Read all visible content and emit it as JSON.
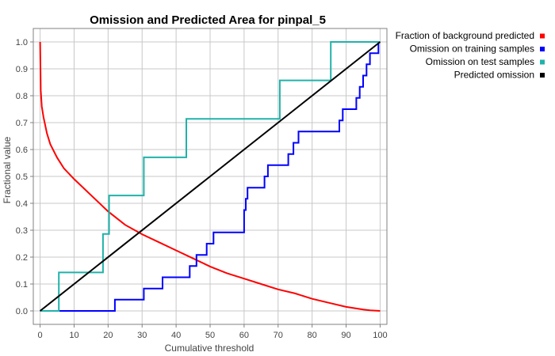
{
  "chart_data": {
    "type": "line",
    "title": "Omission and Predicted Area for pinpal_5",
    "xlabel": "Cumulative threshold",
    "ylabel": "Fractional value",
    "xlim": [
      -2,
      102
    ],
    "ylim": [
      -0.05,
      1.05
    ],
    "xticks": [
      "0",
      "10",
      "20",
      "30",
      "40",
      "50",
      "60",
      "70",
      "80",
      "90",
      "100"
    ],
    "yticks": [
      "0.0",
      "0.1",
      "0.2",
      "0.3",
      "0.4",
      "0.5",
      "0.6",
      "0.7",
      "0.8",
      "0.9",
      "1.0"
    ],
    "grid": true,
    "legend_position": "top-right, outside plot",
    "series": [
      {
        "name": "Fraction of background predicted",
        "color": "#ff0000",
        "style": "line",
        "points": [
          [
            0,
            1.0
          ],
          [
            0.2,
            0.82
          ],
          [
            0.5,
            0.76
          ],
          [
            1,
            0.72
          ],
          [
            2,
            0.66
          ],
          [
            3,
            0.62
          ],
          [
            5,
            0.57
          ],
          [
            7,
            0.53
          ],
          [
            10,
            0.49
          ],
          [
            15,
            0.43
          ],
          [
            20,
            0.37
          ],
          [
            25,
            0.32
          ],
          [
            30,
            0.285
          ],
          [
            35,
            0.255
          ],
          [
            40,
            0.225
          ],
          [
            45,
            0.195
          ],
          [
            50,
            0.165
          ],
          [
            55,
            0.14
          ],
          [
            60,
            0.12
          ],
          [
            65,
            0.1
          ],
          [
            70,
            0.08
          ],
          [
            75,
            0.065
          ],
          [
            80,
            0.045
          ],
          [
            85,
            0.03
          ],
          [
            90,
            0.015
          ],
          [
            95,
            0.005
          ],
          [
            97,
            0.002
          ],
          [
            100,
            0.0
          ]
        ]
      },
      {
        "name": "Omission on training samples",
        "color": "#0000ff",
        "style": "step",
        "points": [
          [
            0,
            0.0
          ],
          [
            22,
            0.0
          ],
          [
            22,
            0.042
          ],
          [
            30.5,
            0.042
          ],
          [
            30.5,
            0.083
          ],
          [
            36,
            0.083
          ],
          [
            36,
            0.125
          ],
          [
            44,
            0.125
          ],
          [
            44,
            0.167
          ],
          [
            46,
            0.167
          ],
          [
            46,
            0.208
          ],
          [
            49,
            0.208
          ],
          [
            49,
            0.25
          ],
          [
            51,
            0.25
          ],
          [
            51,
            0.292
          ],
          [
            60,
            0.292
          ],
          [
            60,
            0.375
          ],
          [
            60.5,
            0.375
          ],
          [
            60.5,
            0.417
          ],
          [
            61,
            0.417
          ],
          [
            61,
            0.458
          ],
          [
            66,
            0.458
          ],
          [
            66,
            0.5
          ],
          [
            67,
            0.5
          ],
          [
            67,
            0.542
          ],
          [
            73,
            0.542
          ],
          [
            73,
            0.583
          ],
          [
            74.5,
            0.583
          ],
          [
            74.5,
            0.625
          ],
          [
            76,
            0.625
          ],
          [
            76,
            0.667
          ],
          [
            88,
            0.667
          ],
          [
            88,
            0.708
          ],
          [
            89,
            0.708
          ],
          [
            89,
            0.75
          ],
          [
            93,
            0.75
          ],
          [
            93,
            0.792
          ],
          [
            94,
            0.792
          ],
          [
            94,
            0.833
          ],
          [
            95,
            0.833
          ],
          [
            95,
            0.875
          ],
          [
            96,
            0.875
          ],
          [
            96,
            0.917
          ],
          [
            97,
            0.917
          ],
          [
            97,
            0.958
          ],
          [
            99.5,
            0.958
          ],
          [
            99.5,
            1.0
          ],
          [
            100,
            1.0
          ]
        ]
      },
      {
        "name": "Omission on test samples",
        "color": "#20b2aa",
        "style": "step",
        "points": [
          [
            0,
            0.0
          ],
          [
            5.5,
            0.0
          ],
          [
            5.5,
            0.143
          ],
          [
            18.5,
            0.143
          ],
          [
            18.5,
            0.286
          ],
          [
            20.3,
            0.286
          ],
          [
            20.3,
            0.429
          ],
          [
            30.5,
            0.429
          ],
          [
            30.5,
            0.571
          ],
          [
            43,
            0.571
          ],
          [
            43,
            0.714
          ],
          [
            70.5,
            0.714
          ],
          [
            70.5,
            0.857
          ],
          [
            85.5,
            0.857
          ],
          [
            85.5,
            1.0
          ],
          [
            100,
            1.0
          ]
        ]
      },
      {
        "name": "Predicted omission",
        "color": "#000000",
        "style": "line",
        "points": [
          [
            0,
            0.0
          ],
          [
            100,
            1.0
          ]
        ]
      }
    ]
  }
}
